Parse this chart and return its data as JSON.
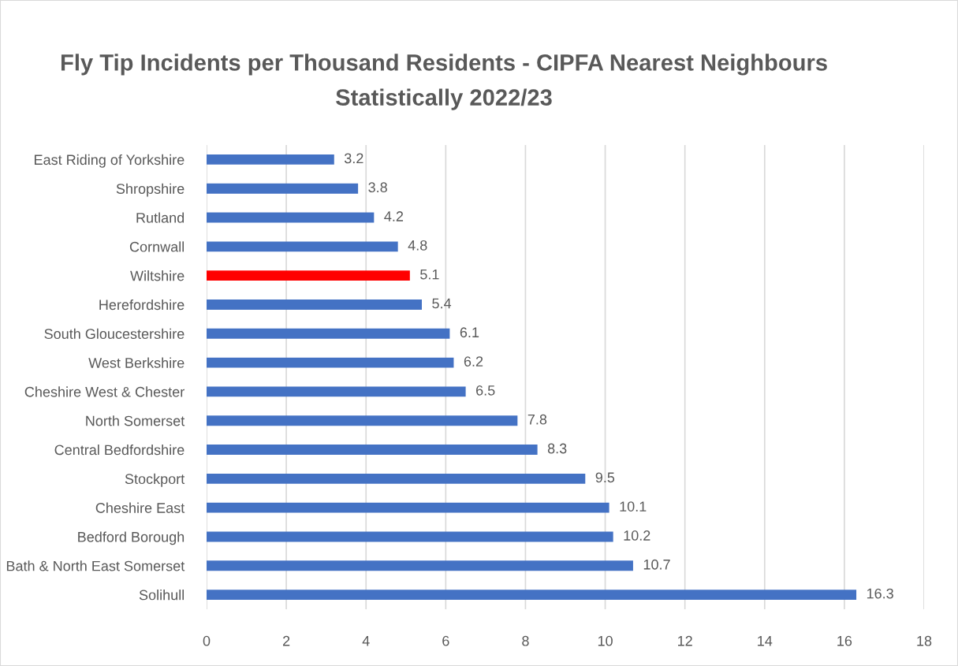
{
  "chart_data": {
    "type": "bar",
    "orientation": "horizontal",
    "title": "Fly Tip Incidents per Thousand Residents - CIPFA Nearest Neighbours\nStatistically 2022/23",
    "categories": [
      "East Riding of Yorkshire",
      "Shropshire",
      "Rutland",
      "Cornwall",
      "Wiltshire",
      "Herefordshire",
      "South Gloucestershire",
      "West Berkshire",
      "Cheshire West & Chester",
      "North Somerset",
      "Central Bedfordshire",
      "Stockport",
      "Cheshire East",
      "Bedford Borough",
      "Bath & North East Somerset",
      "Solihull"
    ],
    "values": [
      3.2,
      3.8,
      4.2,
      4.8,
      5.1,
      5.4,
      6.1,
      6.2,
      6.5,
      7.8,
      8.3,
      9.5,
      10.1,
      10.2,
      10.7,
      16.3
    ],
    "colors": [
      "#4472c4",
      "#4472c4",
      "#4472c4",
      "#4472c4",
      "#ff0000",
      "#4472c4",
      "#4472c4",
      "#4472c4",
      "#4472c4",
      "#4472c4",
      "#4472c4",
      "#4472c4",
      "#4472c4",
      "#4472c4",
      "#4472c4",
      "#4472c4"
    ],
    "xlim": [
      0,
      18
    ],
    "xticks": [
      0,
      2,
      4,
      6,
      8,
      10,
      12,
      14,
      16,
      18
    ],
    "grid": "x",
    "data_labels": true,
    "legend": false
  }
}
